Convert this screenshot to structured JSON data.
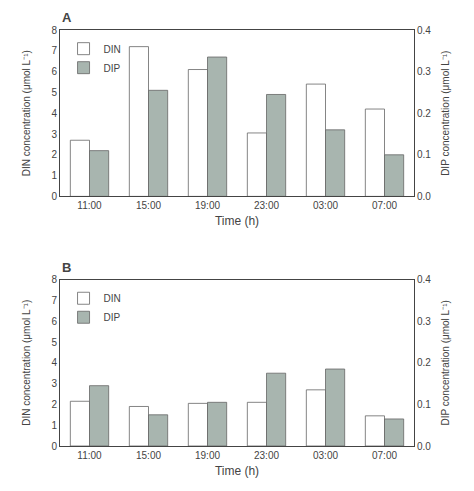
{
  "chart_data": [
    {
      "type": "bar",
      "title": "A",
      "categories": [
        "11:00",
        "15:00",
        "19:00",
        "23:00",
        "03:00",
        "07:00"
      ],
      "series": [
        {
          "name": "DIN",
          "color": "#ffffff",
          "values": [
            2.7,
            7.2,
            6.1,
            3.05,
            5.4,
            4.2
          ]
        },
        {
          "name": "DIP",
          "color": "#a8b5af",
          "values": [
            0.11,
            0.255,
            0.335,
            0.245,
            0.16,
            0.1
          ],
          "axis": "y2"
        }
      ],
      "xlabel": "Time (h)",
      "ylabel": "DIN concentration (μmol L⁻¹)",
      "y2label": "DIP concentration (μmol L⁻¹)",
      "ylim": [
        0,
        8
      ],
      "yticks": [
        0,
        1,
        2,
        3,
        4,
        5,
        6,
        7,
        8
      ],
      "y2lim": [
        0.0,
        0.4
      ],
      "y2ticks": [
        {
          "value": 0.0,
          "label": "0.0"
        },
        0.1,
        0.2,
        0.3,
        0.4
      ],
      "grid": false,
      "legend": "upper left"
    },
    {
      "type": "bar",
      "title": "B",
      "categories": [
        "11:00",
        "15:00",
        "19:00",
        "23:00",
        "03:00",
        "07:00"
      ],
      "series": [
        {
          "name": "DIN",
          "color": "#ffffff",
          "values": [
            2.15,
            1.9,
            2.05,
            2.1,
            2.7,
            1.45
          ]
        },
        {
          "name": "DIP",
          "color": "#a8b5af",
          "values": [
            0.145,
            0.075,
            0.105,
            0.175,
            0.185,
            0.065
          ],
          "axis": "y2"
        }
      ],
      "xlabel": "Time (h)",
      "ylabel": "DIN concentration (μmol L⁻¹)",
      "y2label": "DIP concentration (μmol L⁻¹)",
      "ylim": [
        0,
        8
      ],
      "yticks": [
        0,
        1,
        2,
        3,
        4,
        5,
        6,
        7,
        8
      ],
      "y2lim": [
        0.0,
        0.4
      ],
      "y2ticks": [
        {
          "value": 0.0,
          "label": "0.0"
        },
        0.1,
        0.2,
        0.3,
        0.4
      ],
      "grid": false,
      "legend": "upper left"
    }
  ]
}
